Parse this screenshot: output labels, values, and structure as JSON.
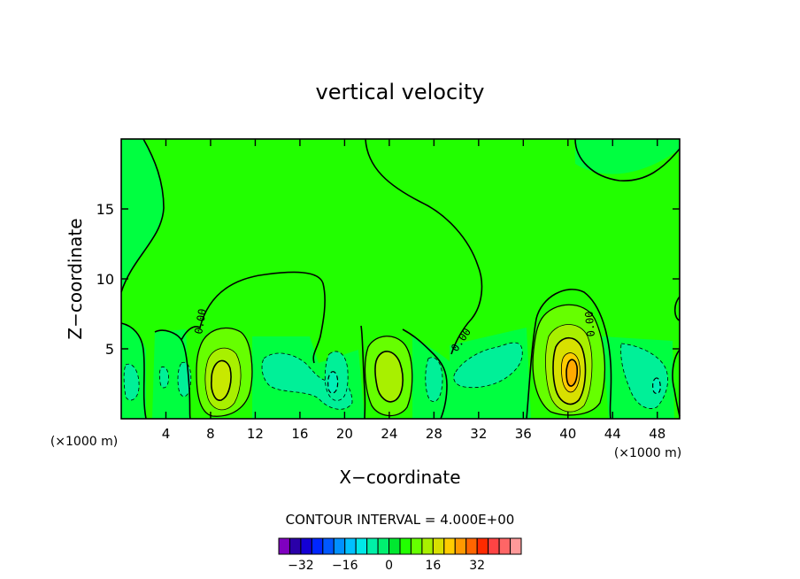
{
  "chart_data": {
    "type": "contour",
    "title": "vertical velocity",
    "xlabel": "X−coordinate",
    "ylabel": "Z−coordinate",
    "x_unit_left": "(×1000 m)",
    "x_unit_right": "(×1000 m)",
    "xlim": [
      0,
      50
    ],
    "ylim": [
      0,
      20
    ],
    "x_ticks": [
      4,
      8,
      12,
      16,
      20,
      24,
      28,
      32,
      36,
      40,
      44,
      48
    ],
    "y_ticks": [
      5,
      10,
      15
    ],
    "background_level_color": "#22ff00",
    "contour_interval_text": "CONTOUR INTERVAL = 4.000E+00",
    "zero_contour_labels": [
      "0.00",
      "0.00",
      "0.00"
    ],
    "colorbar": {
      "colors": [
        "#7f00bf",
        "#2a00a8",
        "#1400d4",
        "#0026ff",
        "#0058ff",
        "#0090ff",
        "#00c0ff",
        "#00e8e8",
        "#00f0a8",
        "#00f070",
        "#00e830",
        "#22ff00",
        "#66ff00",
        "#a8f000",
        "#d8e000",
        "#ffcc00",
        "#ff9900",
        "#ff6600",
        "#ff2a00",
        "#ff4444",
        "#ff6666",
        "#ff9999"
      ],
      "tick_labels": [
        "−32",
        "−16",
        "0",
        "16",
        "32"
      ]
    },
    "features": [
      {
        "kind": "updraft",
        "x": 9.5,
        "z": 3,
        "peak": 12
      },
      {
        "kind": "updraft",
        "x": 24,
        "z": 3.5,
        "peak": 8
      },
      {
        "kind": "updraft",
        "x": 40.5,
        "z": 3.5,
        "peak": 16
      },
      {
        "kind": "downdraft",
        "x": 1.5,
        "z": 2.5,
        "peak": -4
      },
      {
        "kind": "downdraft",
        "x": 6,
        "z": 2.8,
        "peak": -4
      },
      {
        "kind": "downdraft",
        "x": 15.5,
        "z": 3.5,
        "peak": -4
      },
      {
        "kind": "downdraft",
        "x": 19,
        "z": 3,
        "peak": -8
      },
      {
        "kind": "downdraft",
        "x": 28,
        "z": 2.5,
        "peak": -4
      },
      {
        "kind": "downdraft",
        "x": 34,
        "z": 3.5,
        "peak": -4
      },
      {
        "kind": "downdraft",
        "x": 46.5,
        "z": 3,
        "peak": -4
      }
    ]
  }
}
